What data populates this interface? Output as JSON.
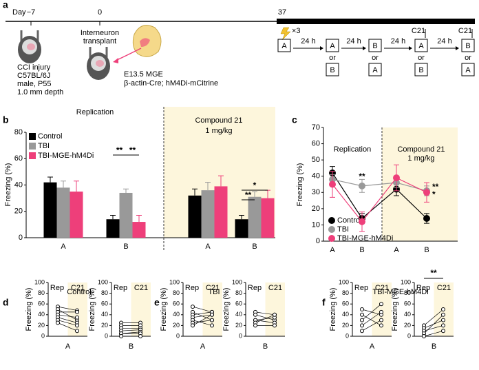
{
  "panel_labels": [
    "a",
    "b",
    "c",
    "d",
    "e",
    "f"
  ],
  "timeline": {
    "day_label": "Day",
    "days": [
      "−7",
      "0",
      "37"
    ],
    "cci": [
      "CCI injury",
      "C57BL/6J",
      "male, P55",
      "1.0 mm depth"
    ],
    "transplant": [
      "Interneuron",
      "transplant"
    ],
    "mge": [
      "E13.5 MGE",
      "β-actin-Cre; hM4Di-mCitrine"
    ],
    "repeat": "×3",
    "steps": [
      {
        "top": "A"
      },
      {
        "top": "A",
        "or": "or",
        "bottom": "B"
      },
      {
        "top": "B",
        "or": "or",
        "bottom": "A"
      },
      {
        "top": "A",
        "or": "or",
        "bottom": "B"
      },
      {
        "top": "B",
        "or": "or",
        "bottom": "A"
      }
    ],
    "intervals": [
      "24 h",
      "24 h",
      "24 h",
      "24 h"
    ],
    "drug": [
      "C21",
      "C21"
    ]
  },
  "chart_data": [
    {
      "type": "bar",
      "ylabel": "Freezing (%)",
      "categories": [
        "A",
        "B",
        "A",
        "B"
      ],
      "sections": [
        {
          "label": "Replication"
        },
        {
          "label": "Compound 21",
          "sublabel": "1 mg/kg"
        }
      ],
      "series": [
        {
          "name": "Control",
          "color": "#000000",
          "values": [
            42,
            14,
            32,
            14
          ],
          "errors": [
            4,
            3,
            5,
            3
          ]
        },
        {
          "name": "TBI",
          "color": "#999999",
          "values": [
            38,
            34,
            36,
            31
          ],
          "errors": [
            5,
            3,
            6,
            4
          ]
        },
        {
          "name": "TBI-MGE-hM4Di",
          "color": "#ee3f7a",
          "values": [
            35,
            12,
            39,
            30
          ],
          "errors": [
            8,
            5,
            8,
            6
          ]
        }
      ],
      "annotations": [
        "**",
        "**",
        "*",
        "**"
      ],
      "ylim": [
        0,
        80
      ],
      "yticks": [
        0,
        20,
        40,
        60,
        80
      ]
    },
    {
      "type": "line",
      "ylabel": "Freezing (%)",
      "categories": [
        "A",
        "B",
        "A",
        "B"
      ],
      "sections": [
        {
          "label": "Replication"
        },
        {
          "label": "Compound 21",
          "sublabel": "1 mg/kg"
        }
      ],
      "series": [
        {
          "name": "Control",
          "color": "#000000",
          "values": [
            42,
            14,
            32,
            14
          ],
          "errors": [
            4,
            3,
            4,
            3
          ]
        },
        {
          "name": "TBI",
          "color": "#999999",
          "values": [
            38,
            34,
            36,
            31
          ],
          "errors": [
            3,
            4,
            3,
            3
          ]
        },
        {
          "name": "TBI-MGE-hM4Di",
          "color": "#ee3f7a",
          "values": [
            35,
            12,
            39,
            30
          ],
          "errors": [
            8,
            6,
            8,
            6
          ]
        }
      ],
      "annotations": [
        "**",
        "**",
        "*"
      ],
      "ylim": [
        0,
        70
      ],
      "yticks": [
        0,
        10,
        20,
        30,
        40,
        50,
        60,
        70
      ]
    },
    {
      "type": "paired",
      "title": "Control",
      "ylabel": "Freezing (%)",
      "categories": [
        "Rep",
        "C21"
      ],
      "xlabel": "A",
      "ylim": [
        0,
        100
      ],
      "yticks": [
        0,
        20,
        40,
        60,
        80,
        100
      ],
      "lines": [
        [
          55,
          48
        ],
        [
          50,
          30
        ],
        [
          45,
          45
        ],
        [
          40,
          35
        ],
        [
          35,
          25
        ],
        [
          30,
          20
        ],
        [
          25,
          10
        ]
      ]
    },
    {
      "type": "paired",
      "ylabel": "Freezing (%)",
      "categories": [
        "Rep",
        "C21"
      ],
      "xlabel": "B",
      "ylim": [
        0,
        100
      ],
      "yticks": [
        0,
        20,
        40,
        60,
        80,
        100
      ],
      "lines": [
        [
          25,
          25
        ],
        [
          20,
          20
        ],
        [
          15,
          15
        ],
        [
          10,
          12
        ],
        [
          5,
          8
        ],
        [
          5,
          5
        ],
        [
          0,
          0
        ]
      ]
    },
    {
      "type": "paired",
      "title": "TBI",
      "ylabel": "Freezing (%)",
      "categories": [
        "Rep",
        "C21"
      ],
      "xlabel": "A",
      "ylim": [
        0,
        100
      ],
      "yticks": [
        0,
        20,
        40,
        60,
        80,
        100
      ],
      "lines": [
        [
          55,
          45
        ],
        [
          45,
          30
        ],
        [
          40,
          45
        ],
        [
          35,
          40
        ],
        [
          30,
          20
        ],
        [
          25,
          30
        ],
        [
          20,
          40
        ]
      ]
    },
    {
      "type": "paired",
      "ylabel": "Freezing (%)",
      "categories": [
        "Rep",
        "C21"
      ],
      "xlabel": "B",
      "ylim": [
        0,
        100
      ],
      "yticks": [
        0,
        20,
        40,
        60,
        80,
        100
      ],
      "lines": [
        [
          45,
          40
        ],
        [
          40,
          30
        ],
        [
          30,
          25
        ],
        [
          30,
          35
        ],
        [
          25,
          40
        ],
        [
          20,
          20
        ]
      ]
    },
    {
      "type": "paired",
      "title": "TBI-MGE-hM4Di",
      "ylabel": "Freezing (%)",
      "categories": [
        "Rep",
        "C21"
      ],
      "xlabel": "A",
      "ylim": [
        0,
        100
      ],
      "yticks": [
        0,
        20,
        40,
        60,
        80,
        100
      ],
      "lines": [
        [
          50,
          40
        ],
        [
          40,
          20
        ],
        [
          30,
          60
        ],
        [
          20,
          45
        ],
        [
          10,
          30
        ]
      ]
    },
    {
      "type": "paired",
      "ylabel": "Freezing (%)",
      "categories": [
        "Rep",
        "C21"
      ],
      "xlabel": "B",
      "ylim": [
        0,
        100
      ],
      "yticks": [
        0,
        20,
        40,
        60,
        80,
        100
      ],
      "lines": [
        [
          20,
          50
        ],
        [
          15,
          30
        ],
        [
          10,
          20
        ],
        [
          5,
          40
        ],
        [
          0,
          10
        ]
      ],
      "annotations": [
        "**"
      ]
    }
  ]
}
